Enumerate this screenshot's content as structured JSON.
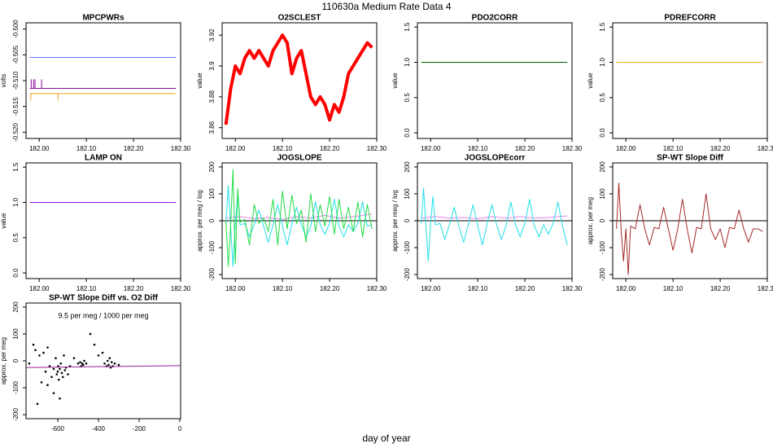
{
  "title": "110630a   Medium Rate Data 4",
  "xlabel": "day of year",
  "chart_data": [
    {
      "type": "line",
      "title": "MPCPWRs",
      "ylabel": "volts",
      "xlim": [
        181.972,
        182.3
      ],
      "xticks": [
        {
          "value": 182,
          "label": "182.00"
        },
        {
          "value": 182.1,
          "label": "182.10"
        },
        {
          "value": 182.2,
          "label": "182.20"
        },
        {
          "value": 182.3,
          "label": "182.30"
        }
      ],
      "ylim": [
        -0.5212,
        -0.4988
      ],
      "yticks": [
        {
          "value": -0.5,
          "label": "-0.500"
        },
        {
          "value": -0.505,
          "label": "-0.505"
        },
        {
          "value": -0.51,
          "label": "-0.510"
        },
        {
          "value": -0.515,
          "label": "-0.515"
        },
        {
          "value": -0.52,
          "label": "-0.520"
        }
      ],
      "series": [
        {
          "color": "#6b6bff",
          "x": [
            181.98,
            182.29
          ],
          "values": [
            -0.5055,
            -0.5055
          ]
        },
        {
          "color": "#8a0a9a",
          "x": [
            181.98,
            181.983,
            181.983,
            181.983,
            181.988,
            181.988,
            181.988,
            181.991,
            181.991,
            181.991,
            182.005,
            182.005,
            182.005,
            182.29
          ],
          "values": [
            -0.5115,
            -0.5115,
            -0.5098,
            -0.5115,
            -0.5115,
            -0.5098,
            -0.5115,
            -0.5115,
            -0.5098,
            -0.5115,
            -0.5115,
            -0.5098,
            -0.5115,
            -0.5115
          ]
        },
        {
          "color": "#f0a020",
          "x": [
            181.98,
            181.982,
            181.982,
            181.982,
            182.04,
            182.04,
            182.04,
            182.29
          ],
          "values": [
            -0.5125,
            -0.5125,
            -0.5138,
            -0.5125,
            -0.5125,
            -0.5138,
            -0.5125,
            -0.5125
          ]
        }
      ]
    },
    {
      "type": "line",
      "title": "O2SCLEST",
      "ylabel": "value",
      "xlim": [
        181.972,
        182.3
      ],
      "xticks": [
        {
          "value": 182,
          "label": "182.00"
        },
        {
          "value": 182.1,
          "label": "182.10"
        },
        {
          "value": 182.2,
          "label": "182.20"
        },
        {
          "value": 182.3,
          "label": "182.30"
        }
      ],
      "ylim": [
        3.853,
        3.928
      ],
      "yticks": [
        3.86,
        3.88,
        3.9,
        3.92
      ],
      "series": [
        {
          "color": "#ff0000",
          "x": [
            181.98,
            181.99,
            182.0,
            182.01,
            182.02,
            182.03,
            182.04,
            182.05,
            182.06,
            182.07,
            182.08,
            182.09,
            182.1,
            182.11,
            182.12,
            182.13,
            182.14,
            182.15,
            182.16,
            182.17,
            182.18,
            182.19,
            182.2,
            182.21,
            182.22,
            182.23,
            182.24,
            182.25,
            182.26,
            182.27,
            182.28,
            182.29
          ],
          "values": [
            3.862,
            3.885,
            3.9,
            3.895,
            3.905,
            3.91,
            3.905,
            3.91,
            3.905,
            3.9,
            3.91,
            3.915,
            3.92,
            3.915,
            3.895,
            3.905,
            3.91,
            3.895,
            3.88,
            3.875,
            3.88,
            3.875,
            3.865,
            3.875,
            3.87,
            3.88,
            3.895,
            3.9,
            3.905,
            3.91,
            3.915,
            3.912
          ]
        }
      ]
    },
    {
      "type": "line",
      "title": "PDO2CORR",
      "ylabel": "value",
      "xlim": [
        181.972,
        182.3
      ],
      "xticks": [
        {
          "value": 182,
          "label": "182.00"
        },
        {
          "value": 182.1,
          "label": "182.10"
        },
        {
          "value": 182.2,
          "label": "182.20"
        },
        {
          "value": 182.3,
          "label": "182.30"
        }
      ],
      "ylim": [
        -0.08,
        1.56
      ],
      "yticks": [
        {
          "value": 0,
          "label": "0.0"
        },
        0.5,
        {
          "value": 1,
          "label": "1.0"
        },
        1.5
      ],
      "series": [
        {
          "color": "#006400",
          "x": [
            181.98,
            182.29
          ],
          "values": [
            1,
            1
          ]
        }
      ]
    },
    {
      "type": "line",
      "title": "PDREFCORR",
      "ylabel": "value",
      "xlim": [
        181.972,
        182.3
      ],
      "xticks": [
        {
          "value": 182,
          "label": "182.00"
        },
        {
          "value": 182.1,
          "label": "182.10"
        },
        {
          "value": 182.2,
          "label": "182.20"
        },
        {
          "value": 182.3,
          "label": "182.30"
        }
      ],
      "ylim": [
        -0.08,
        1.56
      ],
      "yticks": [
        {
          "value": 0,
          "label": "0.0"
        },
        0.5,
        {
          "value": 1,
          "label": "1.0"
        },
        1.5
      ],
      "series": [
        {
          "color": "#f5a623",
          "x": [
            181.98,
            182.29
          ],
          "values": [
            1,
            1
          ]
        }
      ]
    },
    {
      "type": "line",
      "title": "LAMP ON",
      "ylabel": "value",
      "xlim": [
        181.972,
        182.3
      ],
      "xticks": [
        {
          "value": 182,
          "label": "182.00"
        },
        {
          "value": 182.1,
          "label": "182.10"
        },
        {
          "value": 182.2,
          "label": "182.20"
        },
        {
          "value": 182.3,
          "label": "182.30"
        }
      ],
      "ylim": [
        -0.08,
        1.56
      ],
      "yticks": [
        {
          "value": 0,
          "label": "0.0"
        },
        0.5,
        {
          "value": 1,
          "label": "1.0"
        },
        1.5
      ],
      "series": [
        {
          "color": "#a020f0",
          "x": [
            181.98,
            182.29
          ],
          "values": [
            1,
            1
          ]
        }
      ]
    },
    {
      "type": "line",
      "title": "JOGSLOPE",
      "ylabel": "approx. per meg / log",
      "xlim": [
        181.972,
        182.3
      ],
      "xticks": [
        {
          "value": 182,
          "label": "182.00"
        },
        {
          "value": 182.1,
          "label": "182.10"
        },
        {
          "value": 182.2,
          "label": "182.20"
        },
        {
          "value": 182.3,
          "label": "182.30"
        }
      ],
      "ylim": [
        -215,
        215
      ],
      "yticks": [
        -200,
        -100,
        0,
        100,
        200
      ],
      "hline": 0,
      "series": [
        {
          "color": "#ee82ee",
          "x": [
            181.98,
            182.01,
            182.04,
            182.07,
            182.1,
            182.13,
            182.16,
            182.19,
            182.22,
            182.25,
            182.29
          ],
          "values": [
            10,
            15,
            8,
            12,
            5,
            15,
            10,
            20,
            10,
            15,
            25
          ]
        },
        {
          "color": "#22e0e8",
          "x": [
            181.98,
            181.985,
            181.99,
            181.995,
            182.0,
            182.005,
            182.01,
            182.02,
            182.03,
            182.04,
            182.05,
            182.06,
            182.07,
            182.08,
            182.09,
            182.1,
            182.11,
            182.12,
            182.13,
            182.14,
            182.15,
            182.16,
            182.17,
            182.18,
            182.19,
            182.2,
            182.21,
            182.22,
            182.23,
            182.24,
            182.25,
            182.26,
            182.27,
            182.28,
            182.29
          ],
          "values": [
            -10,
            130,
            -20,
            -170,
            -10,
            100,
            -15,
            -10,
            -60,
            -15,
            40,
            -20,
            -80,
            -15,
            60,
            -20,
            -90,
            -10,
            50,
            -15,
            -60,
            -20,
            70,
            -15,
            -50,
            -10,
            80,
            -20,
            -60,
            -15,
            -40,
            -10,
            70,
            -20,
            -15
          ]
        },
        {
          "color": "#22dd44",
          "x": [
            181.98,
            181.985,
            181.99,
            181.995,
            182.0,
            182.005,
            182.01,
            182.02,
            182.03,
            182.04,
            182.05,
            182.06,
            182.07,
            182.08,
            182.09,
            182.1,
            182.11,
            182.12,
            182.13,
            182.14,
            182.15,
            182.16,
            182.17,
            182.18,
            182.19,
            182.2,
            182.21,
            182.22,
            182.23,
            182.24,
            182.25,
            182.26,
            182.27,
            182.28,
            182.29
          ],
          "values": [
            0,
            -170,
            -20,
            190,
            -160,
            120,
            -5,
            5,
            -90,
            60,
            -10,
            10,
            -40,
            80,
            -90,
            110,
            -30,
            95,
            -10,
            40,
            -80,
            100,
            -40,
            60,
            -20,
            90,
            -50,
            80,
            -30,
            50,
            -40,
            70,
            -60,
            60,
            -30
          ]
        }
      ]
    },
    {
      "type": "line",
      "title": "JOGSLOPEcorr",
      "ylabel": "approx. per meg / log",
      "xlim": [
        181.972,
        182.3
      ],
      "xticks": [
        {
          "value": 182,
          "label": "182.00"
        },
        {
          "value": 182.1,
          "label": "182.10"
        },
        {
          "value": 182.2,
          "label": "182.20"
        },
        {
          "value": 182.3,
          "label": "182.30"
        }
      ],
      "ylim": [
        -215,
        215
      ],
      "yticks": [
        -200,
        -100,
        0,
        100,
        200
      ],
      "hline": 0,
      "series": [
        {
          "color": "#ee82ee",
          "x": [
            181.98,
            182.01,
            182.04,
            182.07,
            182.1,
            182.13,
            182.16,
            182.19,
            182.22,
            182.25,
            182.29
          ],
          "values": [
            10,
            15,
            10,
            12,
            8,
            15,
            10,
            15,
            10,
            12,
            18
          ]
        },
        {
          "color": "#22e0e8",
          "x": [
            181.98,
            181.985,
            181.99,
            181.995,
            182.0,
            182.005,
            182.01,
            182.02,
            182.03,
            182.04,
            182.05,
            182.06,
            182.07,
            182.08,
            182.09,
            182.1,
            182.11,
            182.12,
            182.13,
            182.14,
            182.15,
            182.16,
            182.17,
            182.18,
            182.19,
            182.2,
            182.21,
            182.22,
            182.23,
            182.24,
            182.25,
            182.26,
            182.27,
            182.28,
            182.29
          ],
          "values": [
            -10,
            120,
            -20,
            -150,
            -10,
            90,
            -15,
            -10,
            -70,
            -15,
            50,
            -20,
            -80,
            -15,
            60,
            -20,
            -90,
            -10,
            60,
            -15,
            -70,
            -20,
            70,
            -15,
            -60,
            -10,
            80,
            -20,
            -60,
            -15,
            -50,
            -10,
            70,
            -20,
            -90
          ]
        }
      ]
    },
    {
      "type": "line",
      "title": "SP-WT Slope Diff",
      "ylabel": "approx. per meg",
      "xlim": [
        181.972,
        182.3
      ],
      "xticks": [
        {
          "value": 182,
          "label": "182.00"
        },
        {
          "value": 182.1,
          "label": "182.10"
        },
        {
          "value": 182.2,
          "label": "182.20"
        },
        {
          "value": 182.3,
          "label": "182.30"
        }
      ],
      "ylim": [
        -215,
        215
      ],
      "yticks": [
        -200,
        -100,
        0,
        100,
        200
      ],
      "hline": 0,
      "series": [
        {
          "color": "#a52a2a",
          "x": [
            181.98,
            181.985,
            181.99,
            181.995,
            182.0,
            182.005,
            182.01,
            182.02,
            182.03,
            182.04,
            182.05,
            182.06,
            182.07,
            182.08,
            182.09,
            182.1,
            182.11,
            182.12,
            182.13,
            182.14,
            182.15,
            182.16,
            182.17,
            182.18,
            182.19,
            182.2,
            182.21,
            182.22,
            182.23,
            182.24,
            182.25,
            182.26,
            182.27,
            182.28,
            182.29
          ],
          "values": [
            -30,
            140,
            -40,
            -150,
            -30,
            -200,
            -20,
            -30,
            60,
            -30,
            -90,
            -25,
            -30,
            50,
            -30,
            -110,
            -30,
            80,
            -30,
            -120,
            -25,
            -30,
            100,
            -30,
            -70,
            -30,
            -100,
            -25,
            -30,
            40,
            -30,
            -80,
            -30,
            -30,
            -40
          ]
        }
      ]
    },
    {
      "type": "scatter",
      "title": "SP-WT Slope Diff vs. O2 Diff",
      "ylabel": "approx. per meg",
      "annotation": {
        "text": "9.5 per meg / 1000 per meg",
        "color": "#9b1f9b"
      },
      "xlim": [
        -756,
        4
      ],
      "xticks": [
        -600,
        -400,
        -200,
        0
      ],
      "ylim": [
        -215,
        215
      ],
      "yticks": [
        -200,
        -100,
        0,
        100,
        200
      ],
      "series": [
        {
          "color": "#000000",
          "x": [
            -740,
            -720,
            -700,
            -690,
            -680,
            -670,
            -660,
            -650,
            -640,
            -630,
            -620,
            -610,
            -605,
            -600,
            -598,
            -595,
            -590,
            -585,
            -580,
            -575,
            -570,
            -565,
            -560,
            -550,
            -540,
            -520,
            -500,
            -490,
            -485,
            -480,
            -475,
            -470,
            -460,
            -440,
            -420,
            -400,
            -380,
            -370,
            -360,
            -355,
            -350,
            -345,
            -340,
            -335,
            -330,
            -320,
            -300,
            -650,
            -620,
            -590,
            -710
          ],
          "values": [
            -10,
            60,
            -160,
            20,
            -80,
            30,
            -40,
            50,
            -20,
            -60,
            -30,
            10,
            -50,
            -40,
            -20,
            -70,
            -30,
            -10,
            -45,
            -60,
            20,
            -35,
            -25,
            -50,
            -20,
            10,
            -10,
            -5,
            -20,
            -10,
            -15,
            0,
            -10,
            100,
            60,
            20,
            30,
            -10,
            -20,
            0,
            -15,
            10,
            -25,
            -5,
            -20,
            -10,
            -15,
            -90,
            -120,
            -140,
            40
          ]
        }
      ],
      "fit": {
        "color": "#9b1f9b",
        "x": [
          -756,
          4
        ],
        "values": [
          -25,
          -17.8
        ]
      }
    }
  ]
}
